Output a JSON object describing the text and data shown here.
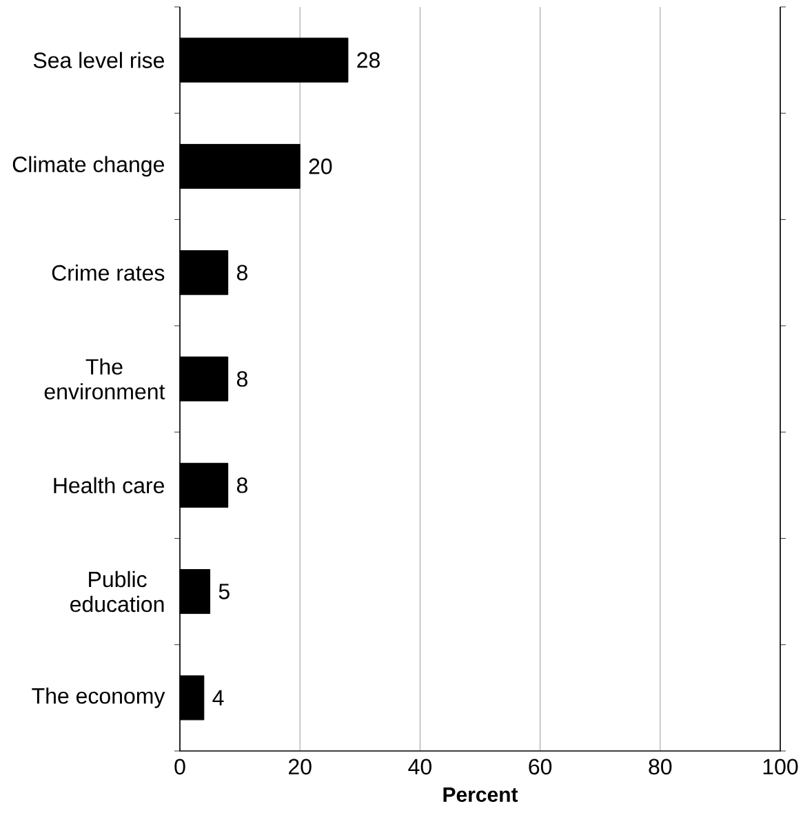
{
  "chart_data": {
    "type": "bar",
    "orientation": "horizontal",
    "xlabel": "Percent",
    "categories": [
      "Sea level rise",
      "Climate change",
      "Crime rates",
      "The environment",
      "Health care",
      "Public education",
      "The economy"
    ],
    "values": [
      28,
      20,
      8,
      8,
      8,
      5,
      4
    ],
    "color": "#000000",
    "xlim": [
      0,
      100
    ],
    "xticks": [
      0,
      20,
      40,
      60,
      80,
      100
    ],
    "grid": "x",
    "data_labels": true
  }
}
